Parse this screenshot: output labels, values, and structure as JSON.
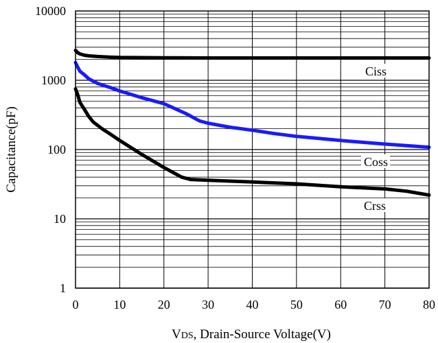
{
  "chart_data": {
    "type": "line",
    "xlabel_main": "V",
    "xlabel_sub": "DS",
    "xlabel_rest": ", Drain-Source Voltage(V)",
    "ylabel": "Capacitance(pF)",
    "xlim": [
      0,
      80
    ],
    "ylim": [
      1,
      10000
    ],
    "y_scale": "log",
    "grid": true,
    "x_ticks": [
      0,
      10,
      20,
      30,
      40,
      50,
      60,
      70,
      80
    ],
    "x_tick_labels": [
      "0",
      "10",
      "20",
      "30",
      "40",
      "50",
      "60",
      "70",
      "80"
    ],
    "y_ticks": [
      1,
      10,
      100,
      1000,
      10000
    ],
    "y_tick_labels": [
      "1",
      "10",
      "100",
      "1000",
      "10000"
    ],
    "series": [
      {
        "name": "Ciss",
        "color": "#000000",
        "x": [
          0,
          0.5,
          1,
          2,
          3,
          5,
          8,
          10,
          15,
          20,
          30,
          40,
          50,
          60,
          70,
          80
        ],
        "y": [
          2700,
          2500,
          2400,
          2300,
          2250,
          2200,
          2150,
          2130,
          2120,
          2110,
          2100,
          2100,
          2100,
          2100,
          2100,
          2100
        ]
      },
      {
        "name": "Coss",
        "color": "#1a1aff",
        "x": [
          0,
          0.5,
          1,
          2,
          3,
          5,
          8,
          10,
          15,
          20,
          25,
          28,
          30,
          35,
          40,
          45,
          50,
          60,
          70,
          80
        ],
        "y": [
          1800,
          1550,
          1350,
          1200,
          1050,
          900,
          780,
          700,
          560,
          460,
          330,
          260,
          240,
          210,
          190,
          170,
          155,
          135,
          120,
          108
        ]
      },
      {
        "name": "Crss",
        "color": "#000000",
        "x": [
          0,
          0.5,
          1,
          2,
          3,
          4,
          6,
          8,
          10,
          15,
          20,
          24,
          26,
          30,
          40,
          50,
          60,
          70,
          75,
          80
        ],
        "y": [
          750,
          620,
          480,
          380,
          300,
          250,
          200,
          165,
          135,
          85,
          55,
          40,
          37,
          36,
          34,
          32,
          29,
          27,
          25,
          22
        ]
      }
    ]
  },
  "labels": {
    "ciss": "Ciss",
    "coss": "Coss",
    "crss": "Crss"
  }
}
